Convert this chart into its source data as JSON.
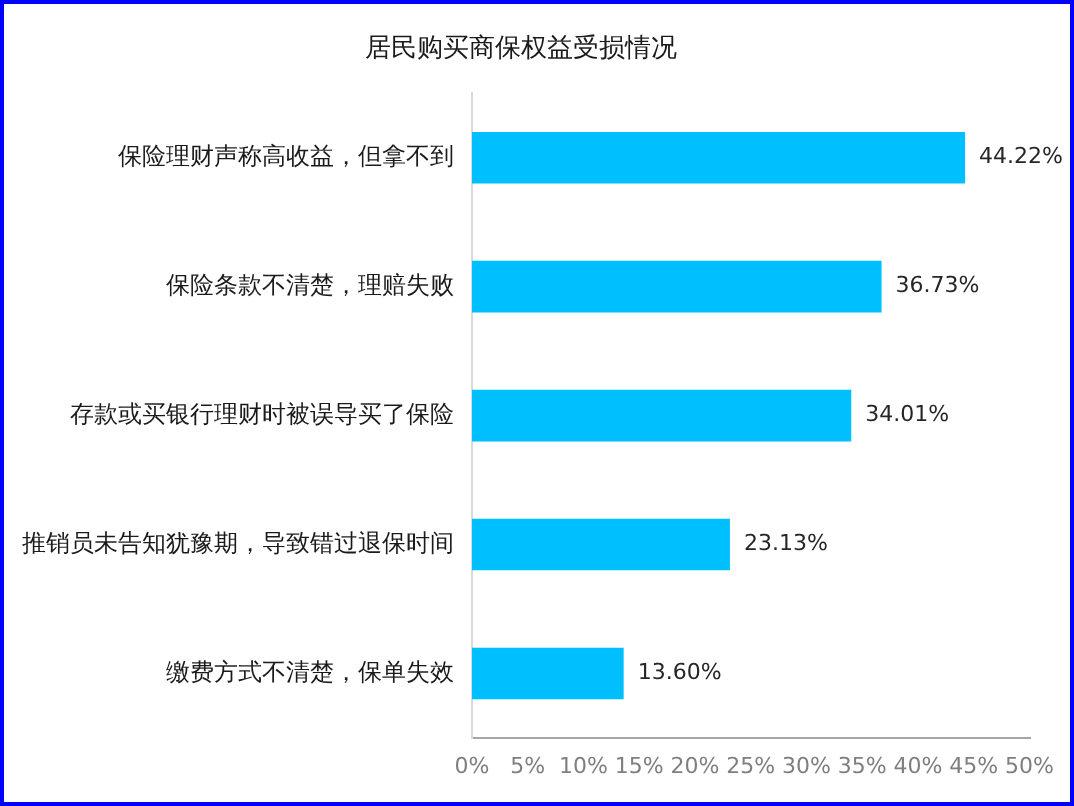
{
  "chart_data": {
    "type": "bar",
    "orientation": "horizontal",
    "title": "居民购买商保权益受损情况",
    "categories": [
      "保险理财声称高收益，但拿不到",
      "保险条款不清楚，理赔失败",
      "存款或买银行理财时被误导买了保险",
      "推销员未告知犹豫期，导致错过退保时间",
      "缴费方式不清楚，保单失效"
    ],
    "values": [
      44.22,
      36.73,
      34.01,
      23.13,
      13.6
    ],
    "value_labels": [
      "44.22%",
      "36.73%",
      "34.01%",
      "23.13%",
      "13.60%"
    ],
    "color": "#00bfff",
    "xlim": [
      0,
      50
    ],
    "xticks": [
      {
        "value": 0,
        "label": "0%"
      },
      {
        "value": 5,
        "label": "5%"
      },
      {
        "value": 10,
        "label": "10%"
      },
      {
        "value": 15,
        "label": "15%"
      },
      {
        "value": 20,
        "label": "20%"
      },
      {
        "value": 25,
        "label": "25%"
      },
      {
        "value": 30,
        "label": "30%"
      },
      {
        "value": 35,
        "label": "35%"
      },
      {
        "value": 40,
        "label": "40%"
      },
      {
        "value": 45,
        "label": "45%"
      },
      {
        "value": 50,
        "label": "50%"
      }
    ],
    "grid": false
  }
}
